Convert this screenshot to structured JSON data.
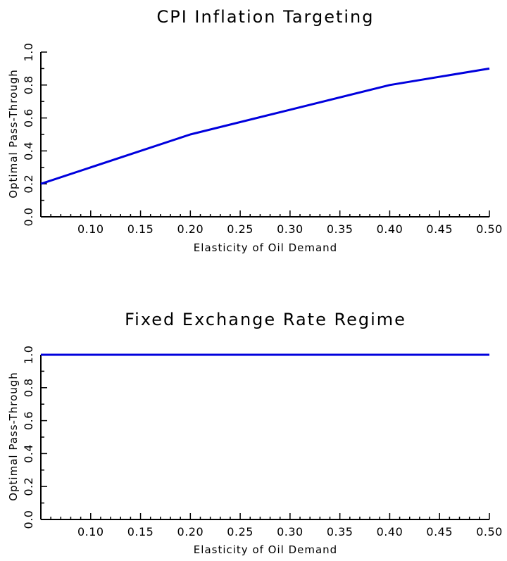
{
  "chart_data": [
    {
      "type": "line",
      "title": "CPI Inflation Targeting",
      "xlabel": "Elasticity of Oil Demand",
      "ylabel": "Optimal Pass-Through",
      "xlim": [
        0.05,
        0.5
      ],
      "ylim": [
        0.0,
        1.0
      ],
      "xticks": [
        "0.10",
        "0.15",
        "0.20",
        "0.25",
        "0.30",
        "0.35",
        "0.40",
        "0.45",
        "0.50"
      ],
      "yticks": [
        "0.0",
        "0.2",
        "0.4",
        "0.6",
        "0.8",
        "1.0"
      ],
      "grid": false,
      "series": [
        {
          "color": "#0000dd",
          "x": [
            0.05,
            0.2,
            0.3,
            0.4,
            0.5
          ],
          "y": [
            0.2,
            0.5,
            0.65,
            0.8,
            0.9
          ]
        }
      ]
    },
    {
      "type": "line",
      "title": "Fixed Exchange Rate Regime",
      "xlabel": "Elasticity of Oil Demand",
      "ylabel": "Optimal Pass-Through",
      "xlim": [
        0.05,
        0.5
      ],
      "ylim": [
        0.0,
        1.0
      ],
      "xticks": [
        "0.10",
        "0.15",
        "0.20",
        "0.25",
        "0.30",
        "0.35",
        "0.40",
        "0.45",
        "0.50"
      ],
      "yticks": [
        "0.0",
        "0.2",
        "0.4",
        "0.6",
        "0.8",
        "1.0"
      ],
      "grid": false,
      "series": [
        {
          "color": "#0000dd",
          "x": [
            0.05,
            0.5
          ],
          "y": [
            1.0,
            1.0
          ]
        }
      ]
    }
  ]
}
